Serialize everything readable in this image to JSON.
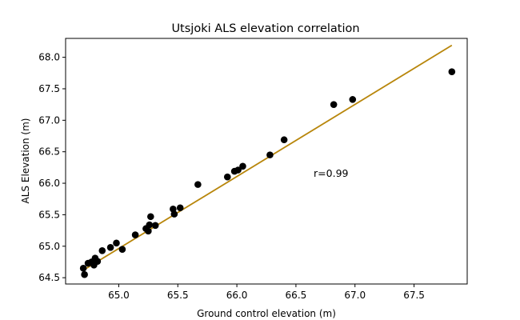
{
  "chart_data": {
    "type": "scatter",
    "title": "Utsjoki ALS elevation correlation",
    "xlabel": "Ground control elevation (m)",
    "ylabel": "ALS Elevation (m)",
    "xlim": [
      64.55,
      67.95
    ],
    "ylim": [
      64.4,
      68.3
    ],
    "xticks": [
      "65.0",
      "65.5",
      "66.0",
      "66.5",
      "67.0",
      "67.5"
    ],
    "yticks": [
      "64.5",
      "65.0",
      "65.5",
      "66.0",
      "66.5",
      "67.0",
      "67.5",
      "68.0"
    ],
    "grid": false,
    "annotation": {
      "text": "r=0.99",
      "x": 66.65,
      "y": 66.15
    },
    "fit_line": {
      "x": [
        64.7,
        67.82
      ],
      "y": [
        64.62,
        68.19
      ],
      "color": "#b8860b"
    },
    "point_color": "#000000",
    "points": [
      [
        64.7,
        64.65
      ],
      [
        64.71,
        64.55
      ],
      [
        64.74,
        64.73
      ],
      [
        64.77,
        64.75
      ],
      [
        64.79,
        64.7
      ],
      [
        64.8,
        64.81
      ],
      [
        64.82,
        64.76
      ],
      [
        64.86,
        64.93
      ],
      [
        64.93,
        64.98
      ],
      [
        64.98,
        65.05
      ],
      [
        65.03,
        64.95
      ],
      [
        65.14,
        65.18
      ],
      [
        65.23,
        65.28
      ],
      [
        65.25,
        65.24
      ],
      [
        65.26,
        65.34
      ],
      [
        65.27,
        65.47
      ],
      [
        65.31,
        65.33
      ],
      [
        65.46,
        65.59
      ],
      [
        65.47,
        65.51
      ],
      [
        65.52,
        65.61
      ],
      [
        65.67,
        65.98
      ],
      [
        65.92,
        66.1
      ],
      [
        65.98,
        66.19
      ],
      [
        66.01,
        66.21
      ],
      [
        66.05,
        66.27
      ],
      [
        66.28,
        66.45
      ],
      [
        66.4,
        66.69
      ],
      [
        66.82,
        67.25
      ],
      [
        66.98,
        67.33
      ],
      [
        67.82,
        67.77
      ]
    ]
  }
}
